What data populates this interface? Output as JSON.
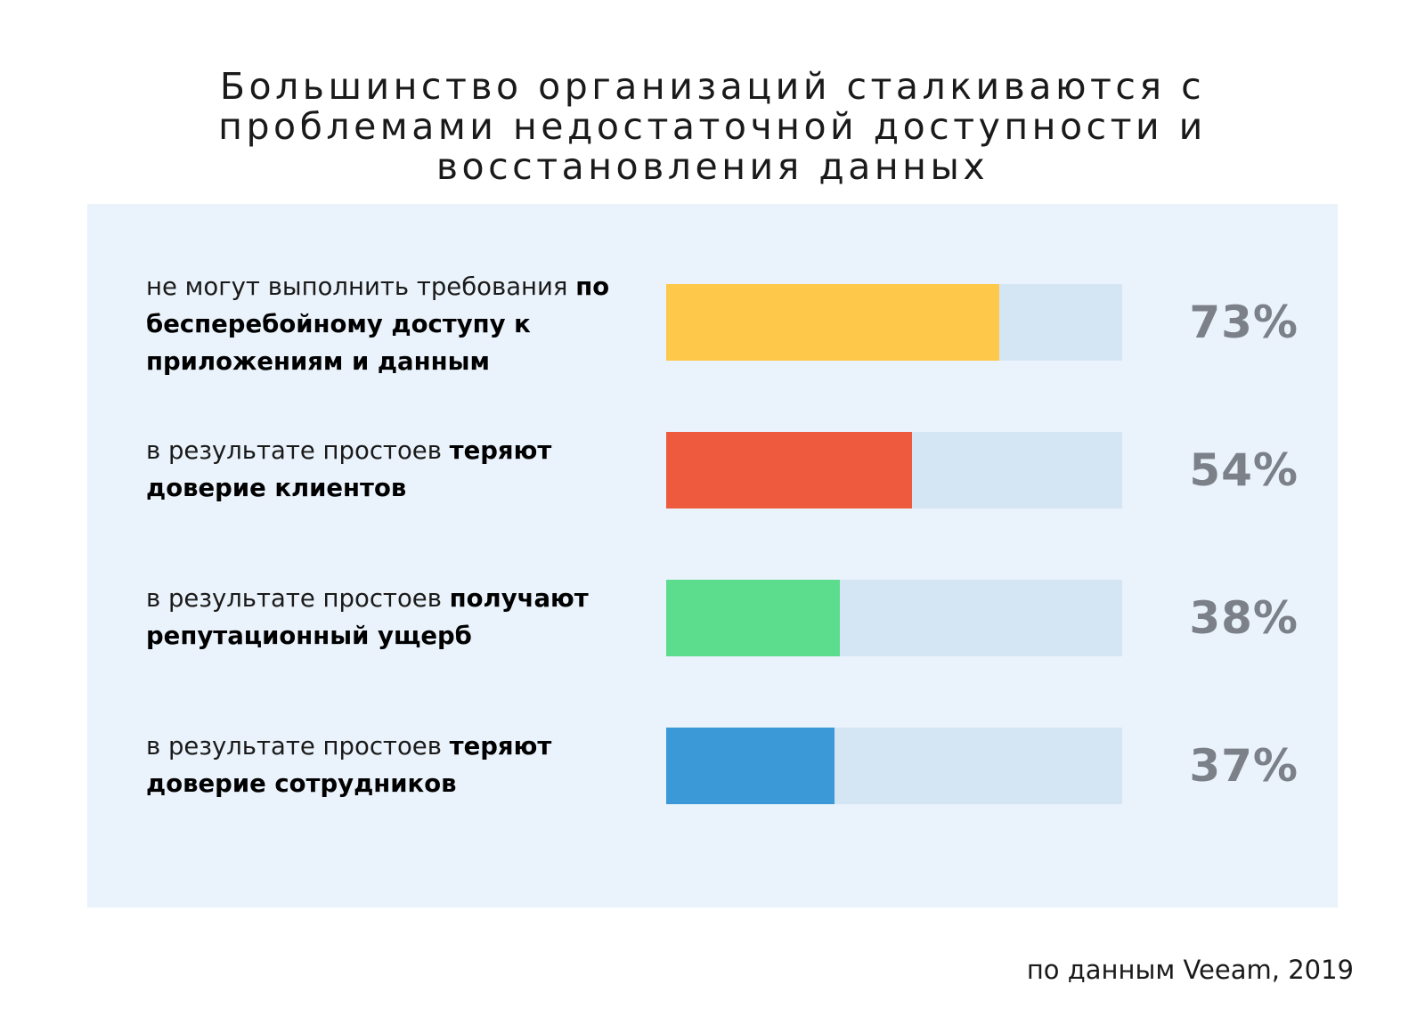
{
  "title": {
    "line1": "Большинство организаций сталкиваются с",
    "line2": "проблемами недостаточной доступности и",
    "line3": "восстановления данных"
  },
  "source": "по данным Veeam, 2019",
  "chart_data": {
    "type": "bar",
    "orientation": "horizontal",
    "title": "Большинство организаций сталкиваются с проблемами недостаточной доступности и восстановления данных",
    "ylim": [
      0,
      100
    ],
    "categories": [
      "не могут выполнить требования по бесперебойному доступу к приложениям и данным",
      "в результате простоев теряют доверие клиентов",
      "в результате простоев получают репутационный ущерб",
      "в результате простоев теряют доверие сотрудников"
    ],
    "values": [
      73,
      54,
      38,
      37
    ],
    "bars": [
      {
        "label_parts": [
          {
            "text": "не могут выполнить требования ",
            "bold": false
          },
          {
            "text": "по бесперебойному доступу к приложениям и данным",
            "bold": true
          }
        ],
        "value": 73,
        "value_label": "73%",
        "color": "#fec84b"
      },
      {
        "label_parts": [
          {
            "text": "в результате простоев ",
            "bold": false
          },
          {
            "text": "теряют доверие клиентов",
            "bold": true
          }
        ],
        "value": 54,
        "value_label": "54%",
        "color": "#ee5a3e"
      },
      {
        "label_parts": [
          {
            "text": "в результате простоев ",
            "bold": false
          },
          {
            "text": "получают репутационный ущерб",
            "bold": true
          }
        ],
        "value": 38,
        "value_label": "38%",
        "color": "#5cdc8d"
      },
      {
        "label_parts": [
          {
            "text": "в результате простоев ",
            "bold": false
          },
          {
            "text": "теряют доверие сотрудников",
            "bold": true
          }
        ],
        "value": 37,
        "value_label": "37%",
        "color": "#3b99d8"
      }
    ],
    "track_color": "#d4e6f4",
    "value_label_color": "#7b8089",
    "grid": false,
    "legend": "none"
  },
  "colors": {
    "panel_background": "#eaf2fb"
  }
}
